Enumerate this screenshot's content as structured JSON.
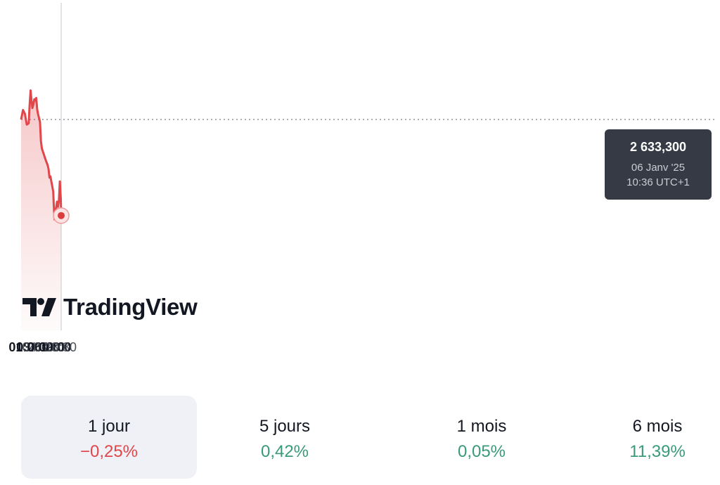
{
  "chart_data": {
    "type": "area",
    "x_ticks": [
      {
        "label": "01:00",
        "bold": true
      },
      {
        "label": "03:00",
        "bold": true
      },
      {
        "label": "04:30",
        "bold": false
      },
      {
        "label": "06:00",
        "bold": true
      },
      {
        "label": "07:30",
        "bold": false
      },
      {
        "label": "09:00",
        "bold": true
      },
      {
        "label": "10:30",
        "bold": false
      }
    ],
    "time": [
      "00:00",
      "00:30",
      "01:00",
      "01:30",
      "02:00",
      "02:15",
      "02:30",
      "02:45",
      "03:00",
      "03:15",
      "03:30",
      "03:45",
      "04:00",
      "04:15",
      "04:30",
      "04:45",
      "05:00",
      "05:15",
      "05:30",
      "06:00",
      "06:30",
      "07:00",
      "07:15",
      "07:30",
      "07:45",
      "08:00",
      "08:15",
      "08:30",
      "08:40",
      "08:50",
      "09:00",
      "09:15",
      "09:30",
      "09:45",
      "10:00",
      "10:15",
      "10:30",
      "10:36"
    ],
    "values": [
      2640900,
      2641650,
      2641350,
      2640500,
      2640600,
      2642000,
      2643200,
      2642400,
      2641800,
      2642100,
      2642500,
      2642400,
      2642600,
      2641700,
      2641300,
      2641000,
      2640700,
      2639200,
      2638600,
      2638150,
      2637700,
      2637300,
      2637000,
      2636300,
      2636400,
      2636000,
      2635600,
      2635200,
      2634000,
      2633000,
      2633500,
      2633900,
      2634400,
      2634000,
      2634500,
      2636000,
      2634600,
      2633300
    ],
    "previous_close": 2640900,
    "line_color": "#e0464a",
    "colors": {
      "down": "#e0464a",
      "up": "#3a9a7a"
    }
  },
  "logo_text": "TradingView",
  "tooltip": {
    "value": "2 633,300",
    "date": "06 Janv '25",
    "time": "10:36 UTC+1"
  },
  "periods": [
    {
      "label": "1 jour",
      "change": "−0,25%",
      "direction": "down",
      "selected": true
    },
    {
      "label": "5 jours",
      "change": "0,42%",
      "direction": "up",
      "selected": false
    },
    {
      "label": "1 mois",
      "change": "0,05%",
      "direction": "up",
      "selected": false
    },
    {
      "label": "6 mois",
      "change": "11,39%",
      "direction": "up",
      "selected": false
    }
  ]
}
